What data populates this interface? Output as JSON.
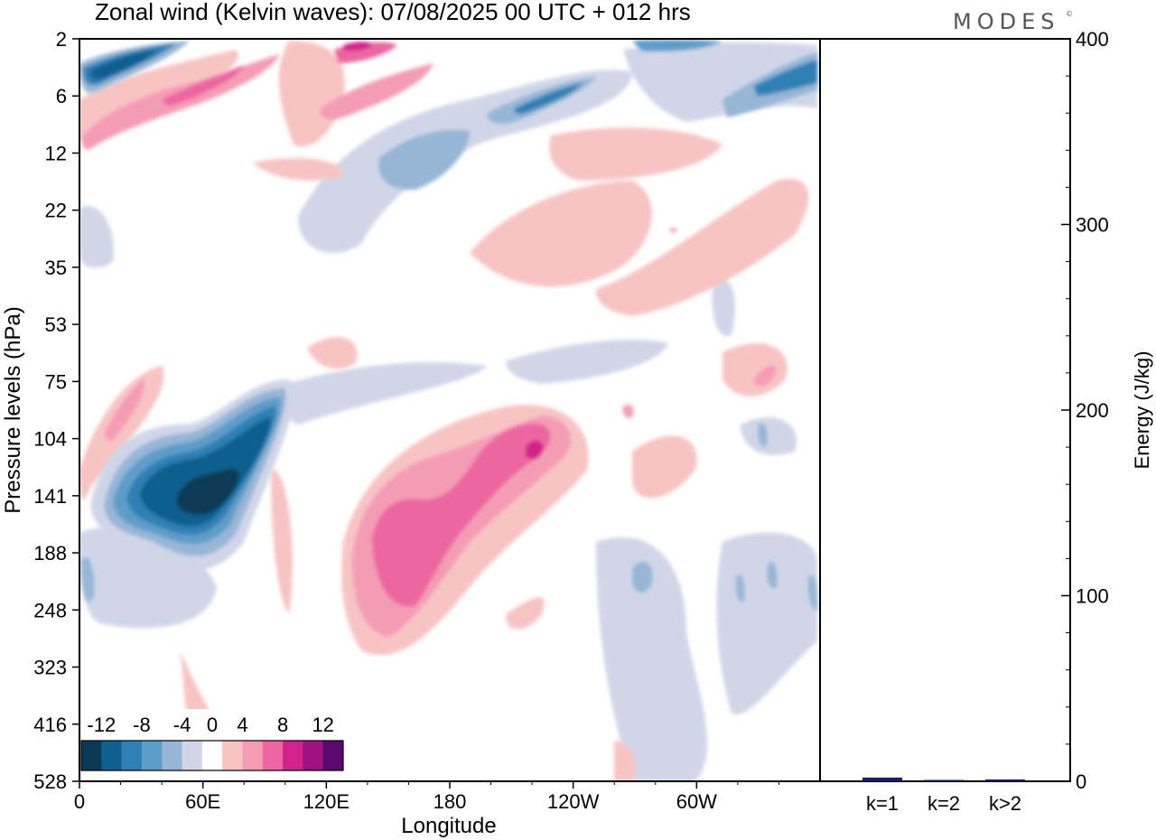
{
  "header": {
    "title": "Zonal wind (Kelvin waves):  07/08/2025  00 UTC  + 012 hrs",
    "logo": "MODES",
    "logo_mark": "©"
  },
  "chart_data": [
    {
      "type": "heatmap",
      "title": "Zonal wind (Kelvin waves):  07/08/2025  00 UTC  + 012 hrs",
      "xlabel": "Longitude",
      "ylabel": "Pressure levels (hPa)",
      "x_ticks": [
        "0",
        "60E",
        "120E",
        "180",
        "120W",
        "60W"
      ],
      "x_tick_degrees": [
        0,
        60,
        120,
        180,
        240,
        300
      ],
      "xlim": [
        0,
        360
      ],
      "y_ticks": [
        "2",
        "6",
        "12",
        "22",
        "35",
        "53",
        "75",
        "104",
        "141",
        "188",
        "248",
        "323",
        "416",
        "528"
      ],
      "colorbar": {
        "labels": [
          "-12",
          "-8",
          "-4",
          "0",
          "4",
          "8",
          "12"
        ],
        "label_levels": [
          -12,
          -8,
          -4,
          0,
          4,
          8,
          12
        ],
        "levels": [
          -14,
          -12,
          -10,
          -8,
          -6,
          -4,
          -2,
          2,
          4,
          6,
          8,
          10,
          12,
          14
        ],
        "colors": [
          "#0b3a55",
          "#0f5f8f",
          "#2e80b5",
          "#5e9dc9",
          "#97b6d6",
          "#d0d6e8",
          "#ffffff",
          "#f7c4c3",
          "#f59cb5",
          "#ec66a0",
          "#d2238c",
          "#a0127f",
          "#5a0a6e"
        ]
      },
      "features": [
        {
          "name": "easterly-core-upper-troposphere",
          "lon": [
            20,
            100
          ],
          "p_hPa": [
            80,
            220
          ],
          "min_value": -14
        },
        {
          "name": "westerly-core-upper-troposphere",
          "lon": [
            110,
            255
          ],
          "p_hPa": [
            95,
            300
          ],
          "max_value": 12
        },
        {
          "name": "easterly-band-stratosphere-west",
          "lon": [
            0,
            45
          ],
          "p_hPa": [
            2,
            8
          ],
          "min_value": -12
        },
        {
          "name": "westerly-band-stratosphere",
          "lon": [
            0,
            180
          ],
          "p_hPa": [
            2,
            12
          ],
          "max_value": 10
        },
        {
          "name": "easterly-band-stratosphere-east",
          "lon": [
            230,
            360
          ],
          "p_hPa": [
            2,
            8
          ],
          "min_value": -8
        }
      ]
    },
    {
      "type": "bar",
      "ylabel": "Energy (J/kg)",
      "categories": [
        "k=1",
        "k=2",
        "k>2"
      ],
      "values": [
        2,
        0.5,
        1
      ],
      "ylim": [
        0,
        400
      ],
      "y_ticks": [
        "0",
        "100",
        "200",
        "300",
        "400"
      ],
      "y_tick_values": [
        0,
        100,
        200,
        300,
        400
      ],
      "bar_color": "#1a1a6e"
    }
  ]
}
